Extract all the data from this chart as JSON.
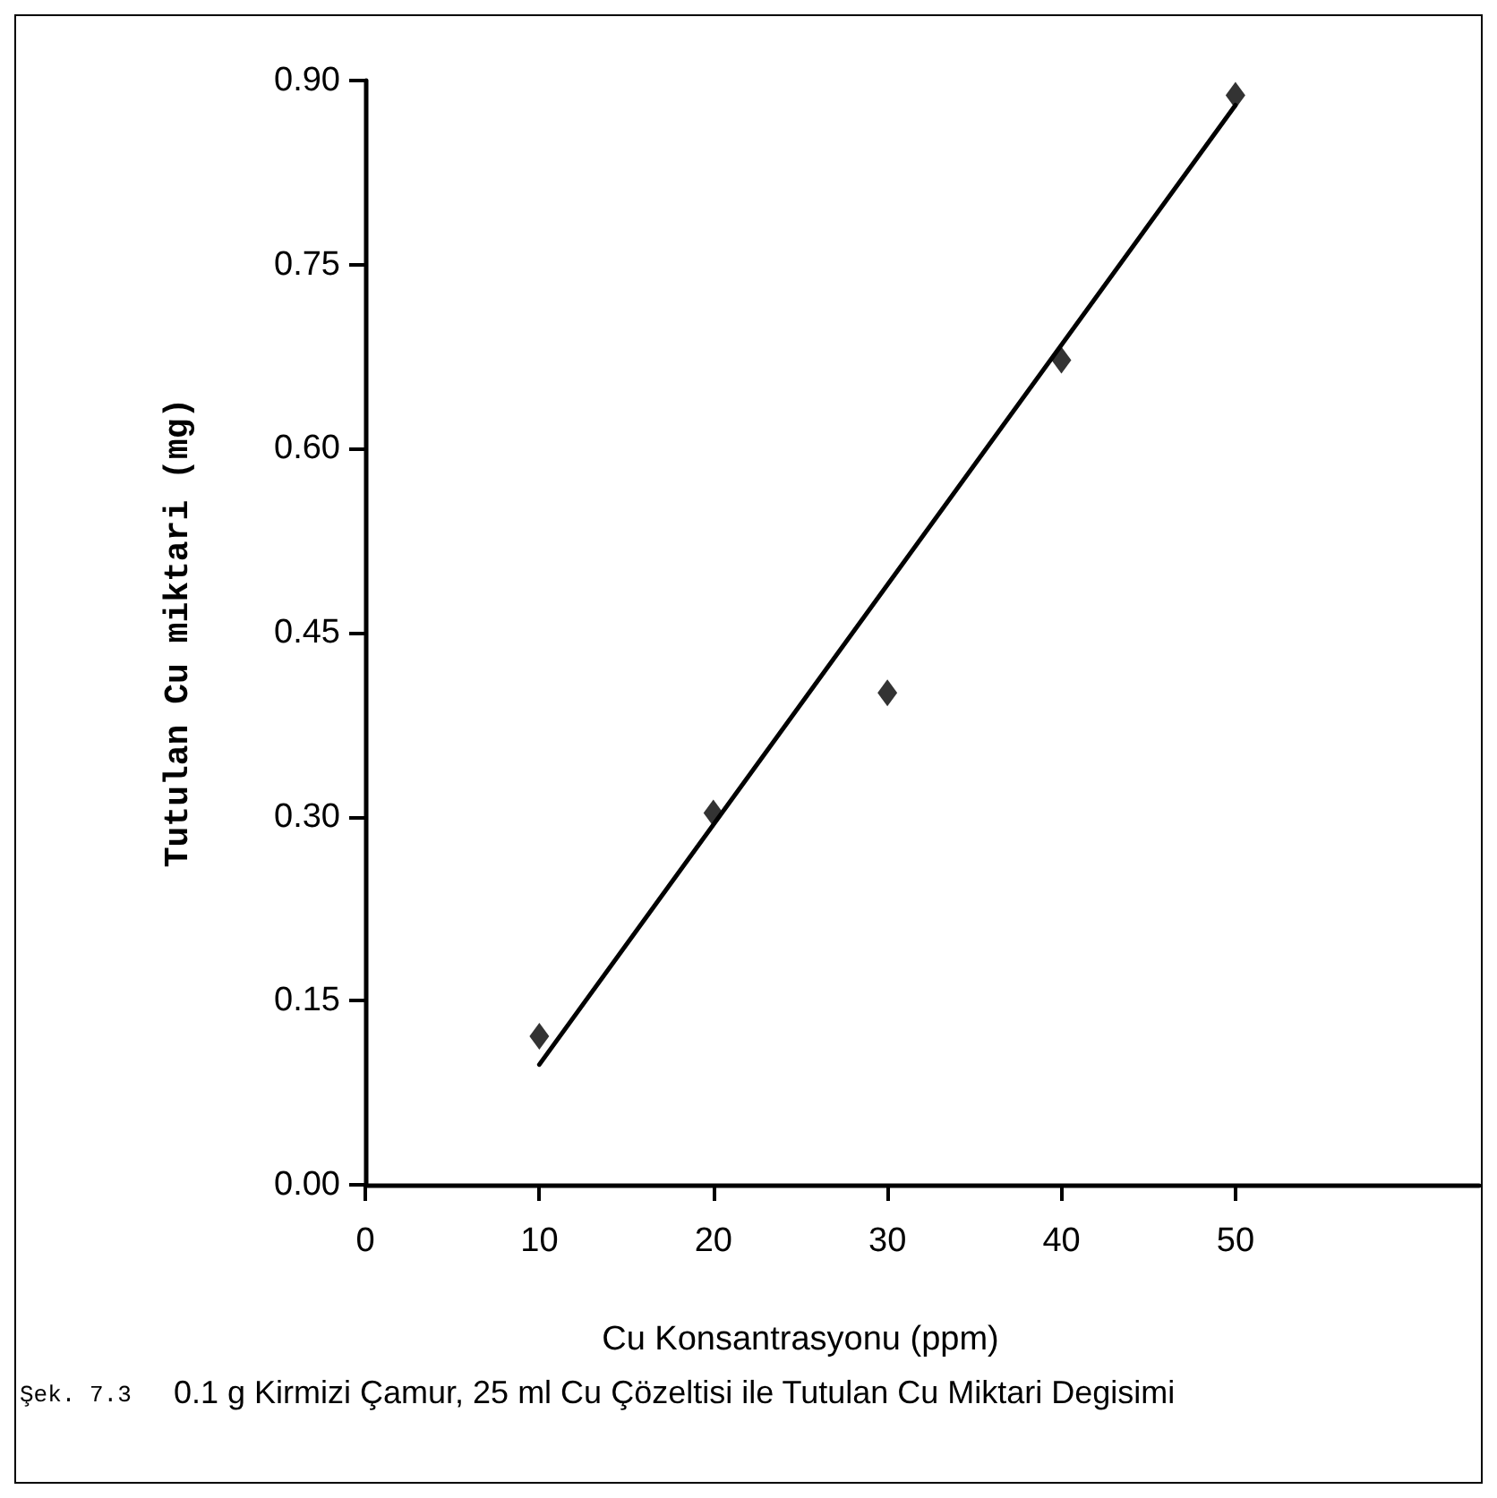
{
  "chart_data": {
    "type": "scatter",
    "xlabel": "Cu Konsantrasyonu (ppm)",
    "ylabel": "Tutulan Cu miktari (mg)",
    "x": [
      10,
      20,
      30,
      40,
      50
    ],
    "series": [
      {
        "color": "#000000",
        "values": [
          0.121,
          0.303,
          0.401,
          0.672,
          0.888
        ],
        "marker": "diamond"
      },
      {
        "type": "line",
        "color": "#000000",
        "x": [
          10,
          50
        ],
        "values": [
          0.098,
          0.88
        ],
        "marker": "none",
        "line_style": "solid"
      }
    ],
    "xlim": [
      0,
      64
    ],
    "xticks": [
      0,
      10,
      20,
      30,
      40,
      50
    ],
    "ylim": [
      0,
      0.9
    ],
    "yticks": [
      {
        "value": 0,
        "label": "0.00"
      },
      {
        "value": 0.15,
        "label": "0.15"
      },
      {
        "value": 0.3,
        "label": "0.30"
      },
      {
        "value": 0.45,
        "label": "0.45"
      },
      {
        "value": 0.6,
        "label": "0.60"
      },
      {
        "value": 0.75,
        "label": "0.75"
      },
      {
        "value": 0.9,
        "label": "0.90"
      }
    ],
    "annotations": [
      "Şek. 7.3",
      "0.1 g Kirmizi Çamur, 25 ml Cu Çözeltisi ile Tutulan Cu Miktari Degisimi"
    ]
  }
}
